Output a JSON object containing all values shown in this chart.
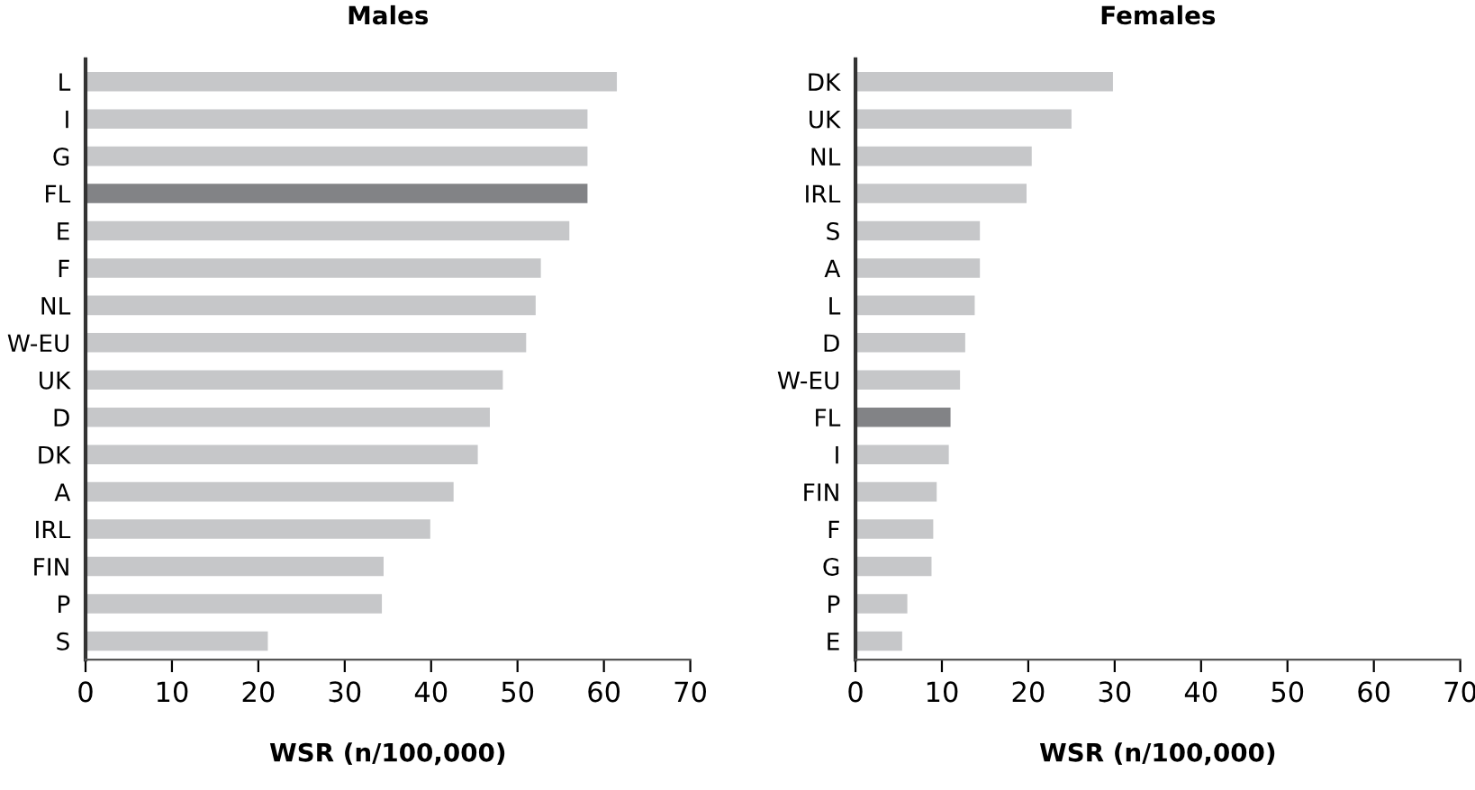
{
  "chart_data": [
    {
      "type": "bar",
      "orientation": "horizontal",
      "title": "Males",
      "xlabel": "WSR (n/100,000)",
      "categories": [
        "L",
        "I",
        "G",
        "FL",
        "E",
        "F",
        "NL",
        "W-EU",
        "UK",
        "D",
        "DK",
        "A",
        "IRL",
        "FIN",
        "P",
        "S"
      ],
      "values": [
        61.5,
        58.1,
        58.1,
        58.1,
        56.0,
        52.7,
        52.1,
        51.0,
        48.3,
        46.8,
        45.4,
        42.6,
        39.9,
        34.5,
        34.3,
        21.1
      ],
      "colors": [
        "#c6c7c9",
        "#c6c7c9",
        "#c6c7c9",
        "#828386",
        "#c6c7c9",
        "#c6c7c9",
        "#c6c7c9",
        "#c6c7c9",
        "#c6c7c9",
        "#c6c7c9",
        "#c6c7c9",
        "#c6c7c9",
        "#c6c7c9",
        "#c6c7c9",
        "#c6c7c9",
        "#c6c7c9"
      ],
      "xlim": [
        0,
        70
      ],
      "xticks": [
        0,
        10,
        20,
        30,
        40,
        50,
        60,
        70
      ],
      "grid": false,
      "legend": false
    },
    {
      "type": "bar",
      "orientation": "horizontal",
      "title": "Females",
      "xlabel": "WSR (n/100,000)",
      "categories": [
        "DK",
        "UK",
        "NL",
        "IRL",
        "S",
        "A",
        "L",
        "D",
        "W-EU",
        "FL",
        "I",
        "FIN",
        "F",
        "G",
        "P",
        "E"
      ],
      "values": [
        29.8,
        25.0,
        20.4,
        19.8,
        14.4,
        14.4,
        13.8,
        12.7,
        12.1,
        11.0,
        10.8,
        9.4,
        9.0,
        8.8,
        6.0,
        5.4
      ],
      "colors": [
        "#c6c7c9",
        "#c6c7c9",
        "#c6c7c9",
        "#c6c7c9",
        "#c6c7c9",
        "#c6c7c9",
        "#c6c7c9",
        "#c6c7c9",
        "#c6c7c9",
        "#828386",
        "#c6c7c9",
        "#c6c7c9",
        "#c6c7c9",
        "#c6c7c9",
        "#c6c7c9",
        "#c6c7c9"
      ],
      "xlim": [
        0,
        70
      ],
      "xticks": [
        0,
        10,
        20,
        30,
        40,
        50,
        60,
        70
      ],
      "grid": false,
      "legend": false
    }
  ]
}
